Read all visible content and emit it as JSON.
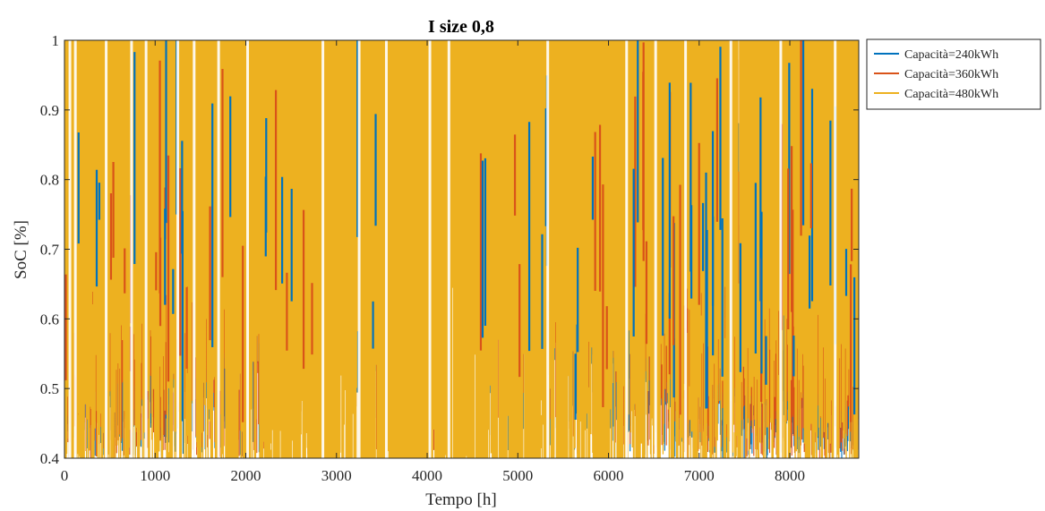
{
  "chart_data": {
    "type": "line",
    "title": "I size 0,8",
    "xlabel": "Tempo [h]",
    "ylabel": "SoC [%]",
    "xlim": [
      0,
      8760
    ],
    "ylim": [
      0.4,
      1
    ],
    "xticks": [
      0,
      1000,
      2000,
      3000,
      4000,
      5000,
      6000,
      7000,
      8000
    ],
    "yticks": [
      0.4,
      0.5,
      0.6,
      0.7,
      0.8,
      0.9,
      1
    ],
    "xtick_labels": [
      "0",
      "1000",
      "2000",
      "3000",
      "4000",
      "5000",
      "6000",
      "7000",
      "8000"
    ],
    "ytick_labels": [
      "0.4",
      "0.5",
      "0.6",
      "0.7",
      "0.8",
      "0.9",
      "1"
    ],
    "grid": false,
    "legend_position": "outside-top-right",
    "series": [
      {
        "name": "Capacità=240kWh",
        "color": "#0072BD"
      },
      {
        "name": "Capacità=360kWh",
        "color": "#D95319"
      },
      {
        "name": "Capacità=480kWh",
        "color": "#EDB120"
      }
    ],
    "note_values": "Hourly state-of-charge over one year (8760 h); series oscillate densely between 0.4 and 1.",
    "envelope": [
      {
        "x": 0,
        "min": 0.4,
        "max": 1.0
      },
      {
        "x": 500,
        "min": 0.42,
        "max": 1.0
      },
      {
        "x": 1000,
        "min": 0.4,
        "max": 1.0
      },
      {
        "x": 1500,
        "min": 0.4,
        "max": 1.0
      },
      {
        "x": 2000,
        "min": 0.4,
        "max": 1.0
      },
      {
        "x": 3000,
        "min": 0.4,
        "max": 1.0
      },
      {
        "x": 4000,
        "min": 0.4,
        "max": 1.0
      },
      {
        "x": 5000,
        "min": 0.4,
        "max": 1.0
      },
      {
        "x": 6000,
        "min": 0.4,
        "max": 1.0
      },
      {
        "x": 7000,
        "min": 0.4,
        "max": 1.0
      },
      {
        "x": 8000,
        "min": 0.4,
        "max": 1.0
      },
      {
        "x": 8760,
        "min": 0.4,
        "max": 1.0
      }
    ]
  }
}
